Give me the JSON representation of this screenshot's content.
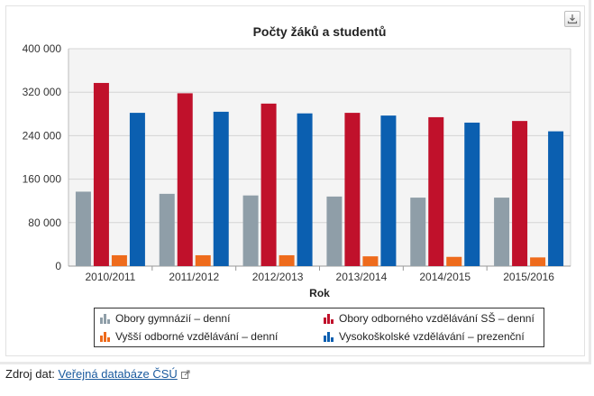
{
  "chart_data": {
    "type": "bar",
    "title": "Počty žáků a studentů",
    "xlabel": "Rok",
    "ylabel": "",
    "ylim": [
      0,
      400000
    ],
    "yticks": [
      0,
      80000,
      160000,
      240000,
      320000,
      400000
    ],
    "ytick_labels": [
      "0",
      "80 000",
      "160 000",
      "240 000",
      "320 000",
      "400 000"
    ],
    "grid": true,
    "legend_position": "bottom",
    "categories": [
      "2010/2011",
      "2011/2012",
      "2012/2013",
      "2013/2014",
      "2014/2015",
      "2015/2016"
    ],
    "series": [
      {
        "name": "Obory gymnázií – denní",
        "color": "#8f9ea8",
        "values": [
          137000,
          133000,
          130000,
          128000,
          126000,
          126000
        ]
      },
      {
        "name": "Vyšší odborné vzdělávání – denní",
        "color": "#ee6b1c",
        "values": [
          20000,
          20000,
          20000,
          18000,
          17000,
          16000
        ]
      },
      {
        "name": "Obory odborného vzdělávání SŠ – denní",
        "color": "#c0112b",
        "values": [
          337000,
          318000,
          299000,
          282000,
          274000,
          267000
        ]
      },
      {
        "name": "Vysokoškolské vzdělávání – prezenční",
        "color": "#0b5fb0",
        "values": [
          282000,
          284000,
          281000,
          277000,
          264000,
          248000
        ]
      }
    ],
    "legend_order": [
      0,
      2,
      1,
      3
    ]
  },
  "source": {
    "label": "Zdroj dat:",
    "link_text": "Veřejná databáze ČSÚ"
  },
  "icons": {
    "download": "download-icon",
    "external_link": "external-link-icon",
    "legend_marker": "bar-chart-icon"
  }
}
